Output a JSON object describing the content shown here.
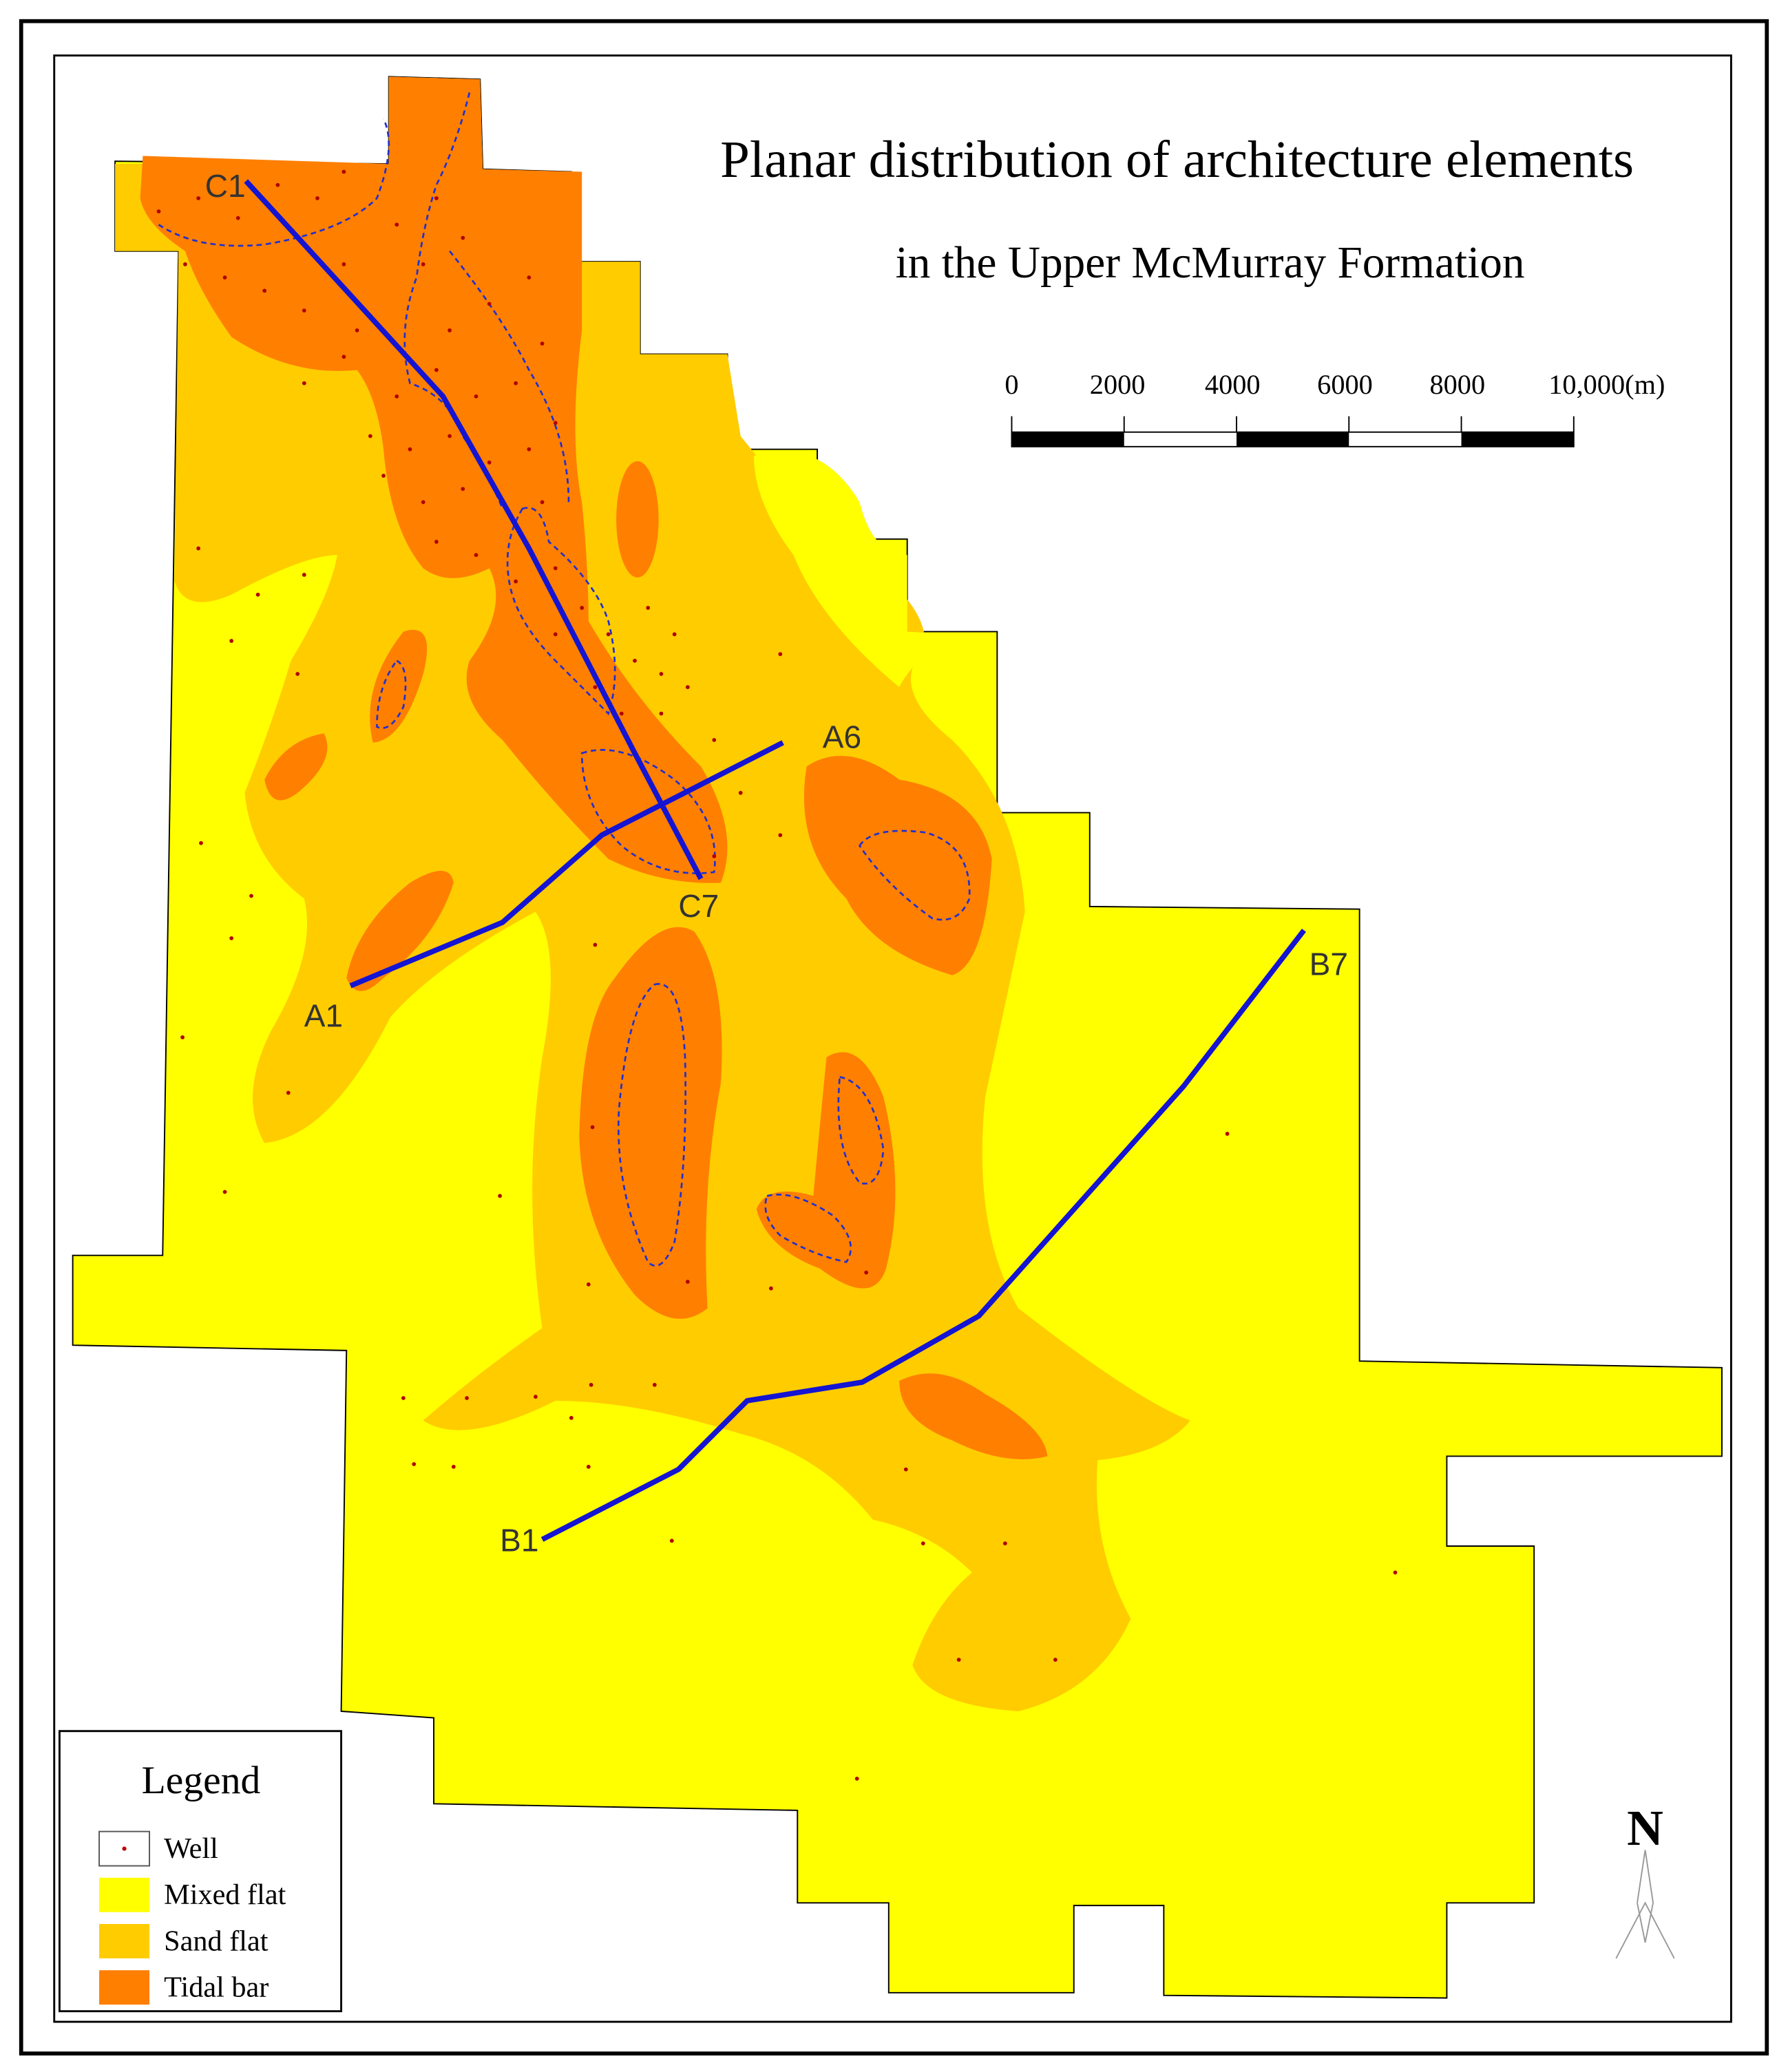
{
  "title": "Planar distribution of architecture elements",
  "subtitle": "in the Upper McMurray Formation",
  "scale_bar": {
    "labels": [
      "0",
      "2000",
      "4000",
      "6000",
      "8000",
      "10,000(m)"
    ]
  },
  "legend": {
    "title": "Legend",
    "items": [
      "Well",
      "Mixed flat",
      "Sand flat",
      "Tidal bar"
    ]
  },
  "sections": [
    "C1",
    "C7",
    "A1",
    "A6",
    "B1",
    "B7"
  ],
  "north": "N"
}
